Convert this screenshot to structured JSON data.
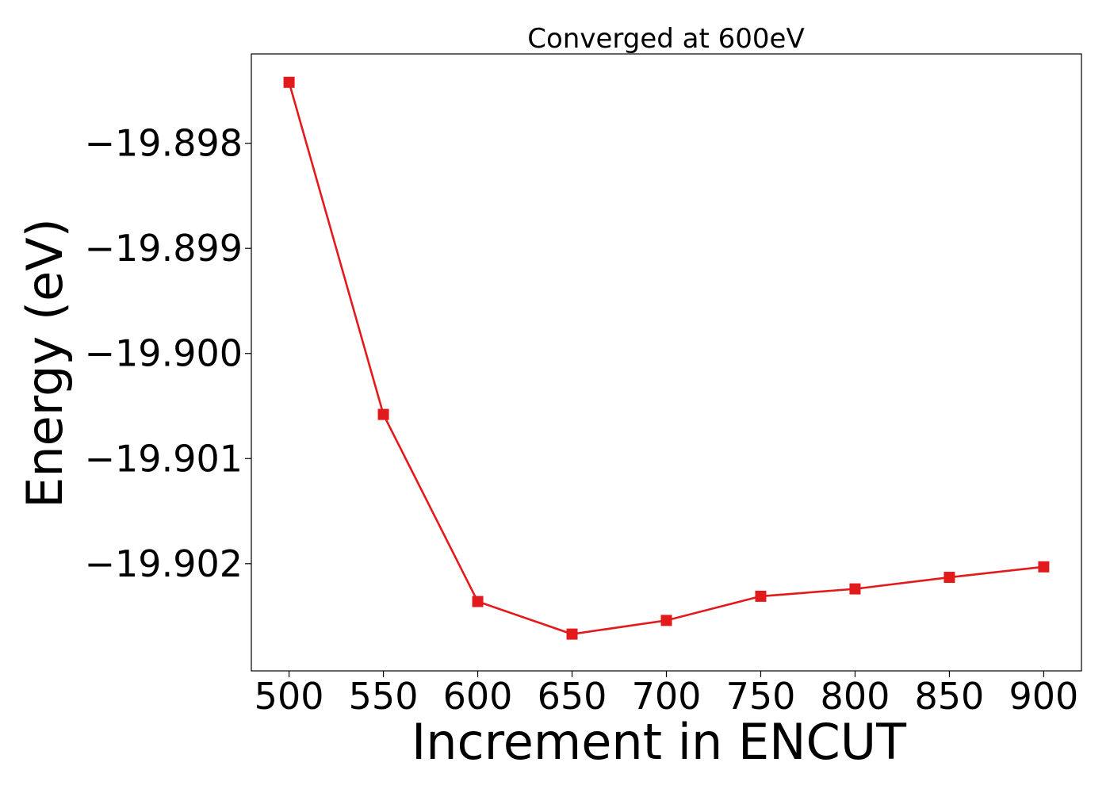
{
  "chart_data": {
    "type": "line",
    "title": "Converged at 600eV",
    "xlabel": "Increment in ENCUT",
    "ylabel": "Energy (eV)",
    "xlim": [
      480,
      920
    ],
    "ylim": [
      -19.90302,
      -19.89715
    ],
    "xticks": [
      500,
      550,
      600,
      650,
      700,
      750,
      800,
      850,
      900
    ],
    "xtick_labels": [
      "500",
      "550",
      "600",
      "650",
      "700",
      "750",
      "800",
      "850",
      "900"
    ],
    "yticks": [
      -19.898,
      -19.899,
      -19.9,
      -19.901,
      -19.902
    ],
    "ytick_labels": [
      "−19.898",
      "−19.899",
      "−19.900",
      "−19.901",
      "−19.902"
    ],
    "grid": false,
    "series": [
      {
        "color": "#e31a1c",
        "marker": "square",
        "x": [
          500,
          550,
          600,
          650,
          700,
          750,
          800,
          850,
          900
        ],
        "y": [
          -19.89742,
          -19.90058,
          -19.90236,
          -19.90267,
          -19.90254,
          -19.90231,
          -19.90224,
          -19.90213,
          -19.90203
        ]
      }
    ]
  }
}
